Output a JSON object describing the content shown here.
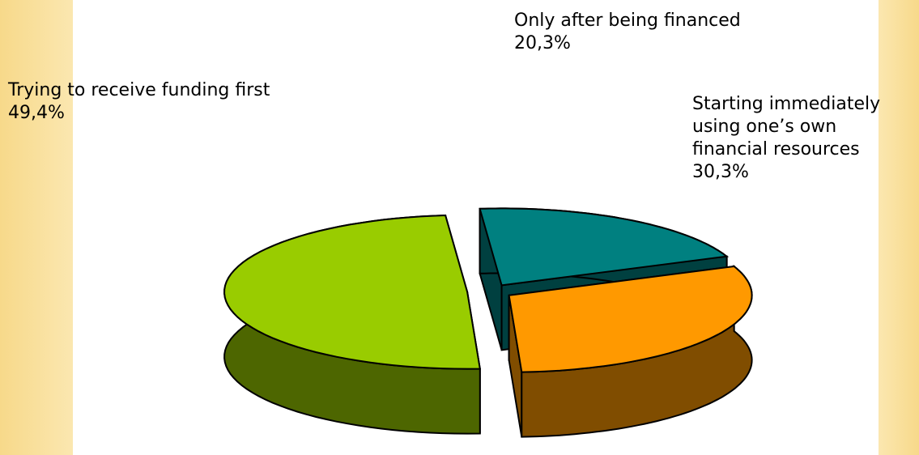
{
  "chart_data": {
    "type": "pie3d",
    "categories": [
      "Trying to receive funding first",
      "Only after being financed",
      "Starting immediately using one’s own financial resources"
    ],
    "values": [
      49.4,
      20.3,
      30.3
    ],
    "value_labels": [
      "49,4%",
      "20,3%",
      "30,3%"
    ],
    "colors": [
      "#99cc00",
      "#008080",
      "#ff9900"
    ]
  }
}
